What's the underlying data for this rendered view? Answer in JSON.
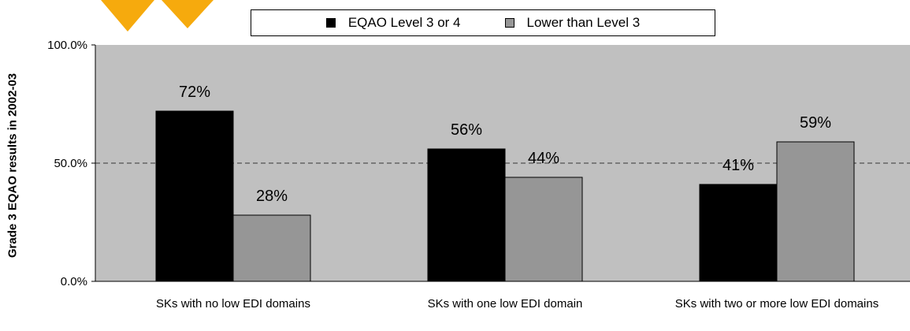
{
  "chart_data": {
    "type": "bar",
    "ylabel": "Grade 3 EQAO results in 2002-03",
    "ylim": [
      0,
      100
    ],
    "yticks": [
      "0.0%",
      "50.0%",
      "100.0%"
    ],
    "reference_line": 50,
    "categories": [
      "SKs with no low EDI domains",
      "SKs with one low EDI domain",
      "SKs with two or more low EDI domains"
    ],
    "series": [
      {
        "name": "EQAO Level 3 or 4",
        "color": "#000000",
        "values": [
          72,
          56,
          41
        ],
        "labels": [
          "72%",
          "56%",
          "41%"
        ]
      },
      {
        "name": "Lower than Level 3",
        "color": "#969696",
        "values": [
          28,
          44,
          59
        ],
        "labels": [
          "28%",
          "44%",
          "59%"
        ]
      }
    ],
    "legend_position": "top",
    "plot_background": "#c0c0c0"
  }
}
